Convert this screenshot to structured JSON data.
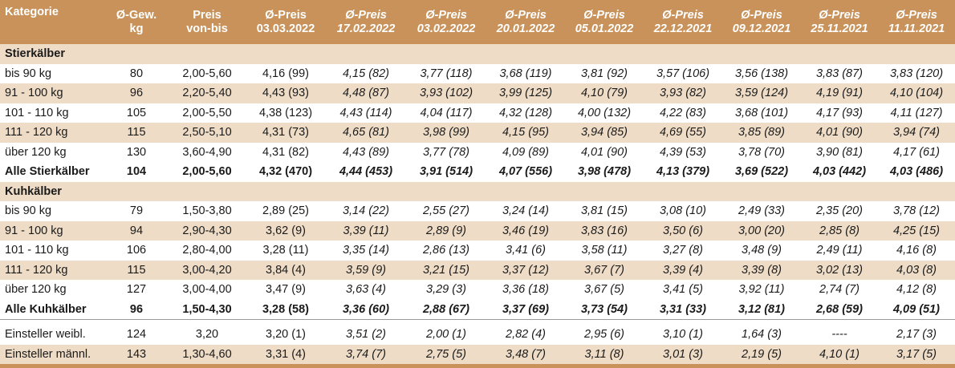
{
  "columns": [
    {
      "line1": "Kategorie",
      "line2": ""
    },
    {
      "line1": "Ø-Gew.",
      "line2": "kg"
    },
    {
      "line1": "Preis",
      "line2": "von-bis"
    },
    {
      "line1": "Ø-Preis",
      "line2": "03.03.2022"
    },
    {
      "line1": "Ø-Preis",
      "line2": "17.02.2022"
    },
    {
      "line1": "Ø-Preis",
      "line2": "03.02.2022"
    },
    {
      "line1": "Ø-Preis",
      "line2": "20.01.2022"
    },
    {
      "line1": "Ø-Preis",
      "line2": "05.01.2022"
    },
    {
      "line1": "Ø-Preis",
      "line2": "22.12.2021"
    },
    {
      "line1": "Ø-Preis",
      "line2": "09.12.2021"
    },
    {
      "line1": "Ø-Preis",
      "line2": "25.11.2021"
    },
    {
      "line1": "Ø-Preis",
      "line2": "11.11.2021"
    }
  ],
  "rows": [
    {
      "type": "section",
      "label": "Stierkälber"
    },
    {
      "type": "data",
      "cells": [
        "bis 90 kg",
        "80",
        "2,00-5,60",
        "4,16 (99)",
        "4,15 (82)",
        "3,77 (118)",
        "3,68 (119)",
        "3,81 (92)",
        "3,57 (106)",
        "3,56 (138)",
        "3,83 (87)",
        "3,83 (120)"
      ]
    },
    {
      "type": "data",
      "cells": [
        "91 - 100 kg",
        "96",
        "2,20-5,40",
        "4,43 (93)",
        "4,48 (87)",
        "3,93 (102)",
        "3,99 (125)",
        "4,10 (79)",
        "3,93 (82)",
        "3,59 (124)",
        "4,19 (91)",
        "4,10 (104)"
      ]
    },
    {
      "type": "data",
      "cells": [
        "101 - 110 kg",
        "105",
        "2,00-5,50",
        "4,38 (123)",
        "4,43 (114)",
        "4,04 (117)",
        "4,32 (128)",
        "4,00 (132)",
        "4,22 (83)",
        "3,68 (101)",
        "4,17 (93)",
        "4,11 (127)"
      ]
    },
    {
      "type": "data",
      "cells": [
        "111 - 120 kg",
        "115",
        "2,50-5,10",
        "4,31 (73)",
        "4,65 (81)",
        "3,98 (99)",
        "4,15 (95)",
        "3,94 (85)",
        "4,69 (55)",
        "3,85 (89)",
        "4,01 (90)",
        "3,94 (74)"
      ]
    },
    {
      "type": "data",
      "cells": [
        "über 120 kg",
        "130",
        "3,60-4,90",
        "4,31 (82)",
        "4,43 (89)",
        "3,77 (78)",
        "4,09 (89)",
        "4,01 (90)",
        "4,39 (53)",
        "3,78 (70)",
        "3,90 (81)",
        "4,17 (61)"
      ]
    },
    {
      "type": "total",
      "cells": [
        "Alle Stierkälber",
        "104",
        "2,00-5,60",
        "4,32 (470)",
        "4,44 (453)",
        "3,91 (514)",
        "4,07 (556)",
        "3,98 (478)",
        "4,13 (379)",
        "3,69 (522)",
        "4,03 (442)",
        "4,03 (486)"
      ]
    },
    {
      "type": "section",
      "label": "Kuhkälber"
    },
    {
      "type": "data",
      "cells": [
        "bis 90 kg",
        "79",
        "1,50-3,80",
        "2,89 (25)",
        "3,14 (22)",
        "2,55 (27)",
        "3,24 (14)",
        "3,81 (15)",
        "3,08 (10)",
        "2,49 (33)",
        "2,35 (20)",
        "3,78 (12)"
      ]
    },
    {
      "type": "data",
      "cells": [
        "91 - 100 kg",
        "94",
        "2,90-4,30",
        "3,62 (9)",
        "3,39 (11)",
        "2,89 (9)",
        "3,46 (19)",
        "3,83 (16)",
        "3,50 (6)",
        "3,00 (20)",
        "2,85 (8)",
        "4,25 (15)"
      ]
    },
    {
      "type": "data",
      "cells": [
        "101 - 110 kg",
        "106",
        "2,80-4,00",
        "3,28 (11)",
        "3,35 (14)",
        "2,86 (13)",
        "3,41 (6)",
        "3,58 (11)",
        "3,27 (8)",
        "3,48 (9)",
        "2,49 (11)",
        "4,16 (8)"
      ]
    },
    {
      "type": "data",
      "cells": [
        "111 - 120 kg",
        "115",
        "3,00-4,20",
        "3,84 (4)",
        "3,59 (9)",
        "3,21 (15)",
        "3,37 (12)",
        "3,67 (7)",
        "3,39 (4)",
        "3,39 (8)",
        "3,02 (13)",
        "4,03 (8)"
      ]
    },
    {
      "type": "data",
      "cells": [
        "über 120 kg",
        "127",
        "3,00-4,00",
        "3,47 (9)",
        "3,63 (4)",
        "3,29 (3)",
        "3,36 (18)",
        "3,67 (5)",
        "3,41 (5)",
        "3,92 (11)",
        "2,74 (7)",
        "4,12 (8)"
      ]
    },
    {
      "type": "total",
      "cells": [
        "Alle Kuhkälber",
        "96",
        "1,50-4,30",
        "3,28 (58)",
        "3,36 (60)",
        "2,88 (67)",
        "3,37 (69)",
        "3,73 (54)",
        "3,31 (33)",
        "3,12 (81)",
        "2,68 (59)",
        "4,09 (51)"
      ]
    },
    {
      "type": "spacer"
    },
    {
      "type": "data",
      "cells": [
        "Einsteller weibl.",
        "124",
        "3,20",
        "3,20 (1)",
        "3,51 (2)",
        "2,00 (1)",
        "2,82 (4)",
        "2,95 (6)",
        "3,10 (1)",
        "1,64 (3)",
        "----",
        "2,17 (3)"
      ]
    },
    {
      "type": "data",
      "cells": [
        "Einsteller männl.",
        "143",
        "1,30-4,60",
        "3,31 (4)",
        "3,74 (7)",
        "2,75 (5)",
        "3,48 (7)",
        "3,11 (8)",
        "3,01 (3)",
        "2,19 (5)",
        "4,10 (1)",
        "3,17 (5)"
      ]
    }
  ]
}
